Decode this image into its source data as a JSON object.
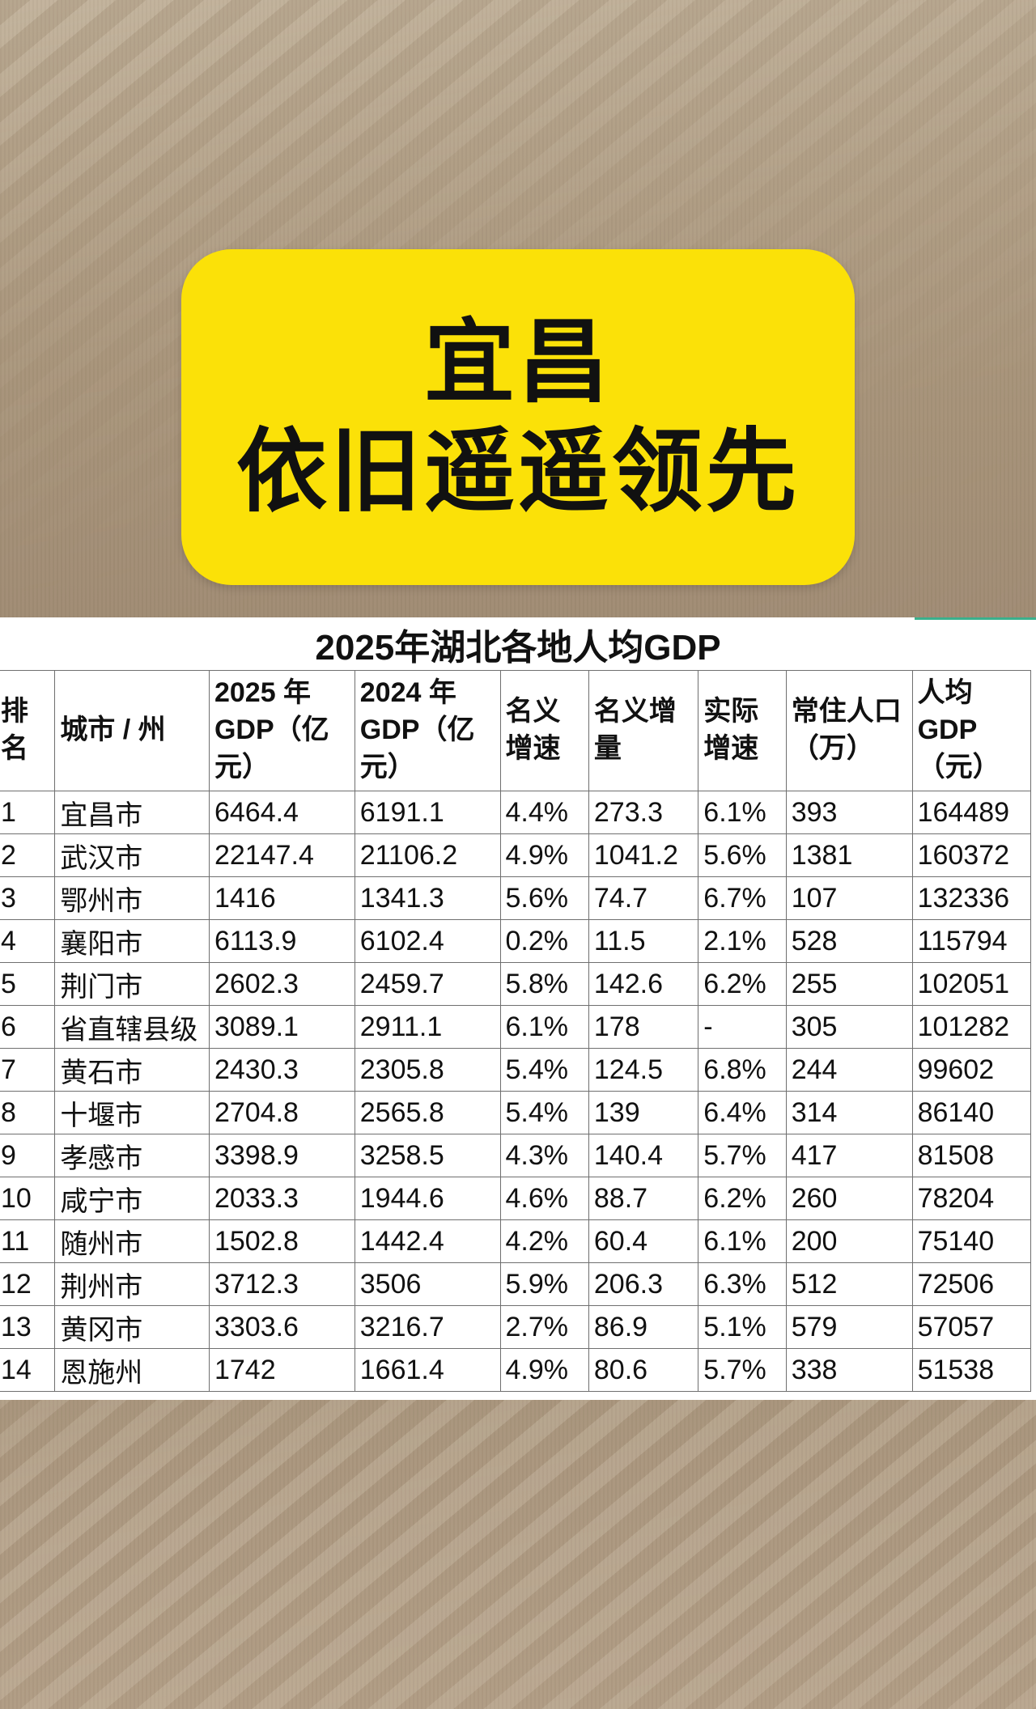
{
  "headline": {
    "line1": "宜昌",
    "line2": "依旧遥遥领先",
    "box_color": "#fbe108"
  },
  "chart_data": {
    "type": "table",
    "title": "2025年湖北各地人均GDP",
    "columns": [
      [
        "排",
        "名"
      ],
      [
        "城市 / 州"
      ],
      [
        "2025 年",
        "GDP（亿",
        "元）"
      ],
      [
        "2024 年",
        "GDP（亿",
        "元）"
      ],
      [
        "名义",
        "增速"
      ],
      [
        "名义增",
        "量"
      ],
      [
        "实际",
        "增速"
      ],
      [
        "常住人口",
        "（万）"
      ],
      [
        "人均",
        "GDP",
        "（元）"
      ]
    ],
    "rows": [
      [
        "1",
        "宜昌市",
        "6464.4",
        "6191.1",
        "4.4%",
        "273.3",
        "6.1%",
        "393",
        "164489"
      ],
      [
        "2",
        "武汉市",
        "22147.4",
        "21106.2",
        "4.9%",
        "1041.2",
        "5.6%",
        "1381",
        "160372"
      ],
      [
        "3",
        "鄂州市",
        "1416",
        "1341.3",
        "5.6%",
        "74.7",
        "6.7%",
        "107",
        "132336"
      ],
      [
        "4",
        "襄阳市",
        "6113.9",
        "6102.4",
        "0.2%",
        "11.5",
        "2.1%",
        "528",
        "115794"
      ],
      [
        "5",
        "荆门市",
        "2602.3",
        "2459.7",
        "5.8%",
        "142.6",
        "6.2%",
        "255",
        "102051"
      ],
      [
        "6",
        "省直辖县级",
        "3089.1",
        "2911.1",
        "6.1%",
        "178",
        "-",
        "305",
        "101282"
      ],
      [
        "7",
        "黄石市",
        "2430.3",
        "2305.8",
        "5.4%",
        "124.5",
        "6.8%",
        "244",
        "99602"
      ],
      [
        "8",
        "十堰市",
        "2704.8",
        "2565.8",
        "5.4%",
        "139",
        "6.4%",
        "314",
        "86140"
      ],
      [
        "9",
        "孝感市",
        "3398.9",
        "3258.5",
        "4.3%",
        "140.4",
        "5.7%",
        "417",
        "81508"
      ],
      [
        "10",
        "咸宁市",
        "2033.3",
        "1944.6",
        "4.6%",
        "88.7",
        "6.2%",
        "260",
        "78204"
      ],
      [
        "11",
        "随州市",
        "1502.8",
        "1442.4",
        "4.2%",
        "60.4",
        "6.1%",
        "200",
        "75140"
      ],
      [
        "12",
        "荆州市",
        "3712.3",
        "3506",
        "5.9%",
        "206.3",
        "6.3%",
        "512",
        "72506"
      ],
      [
        "13",
        "黄冈市",
        "3303.6",
        "3216.7",
        "2.7%",
        "86.9",
        "5.1%",
        "579",
        "57057"
      ],
      [
        "14",
        "恩施州",
        "1742",
        "1661.4",
        "4.9%",
        "80.6",
        "5.7%",
        "338",
        "51538"
      ]
    ]
  }
}
